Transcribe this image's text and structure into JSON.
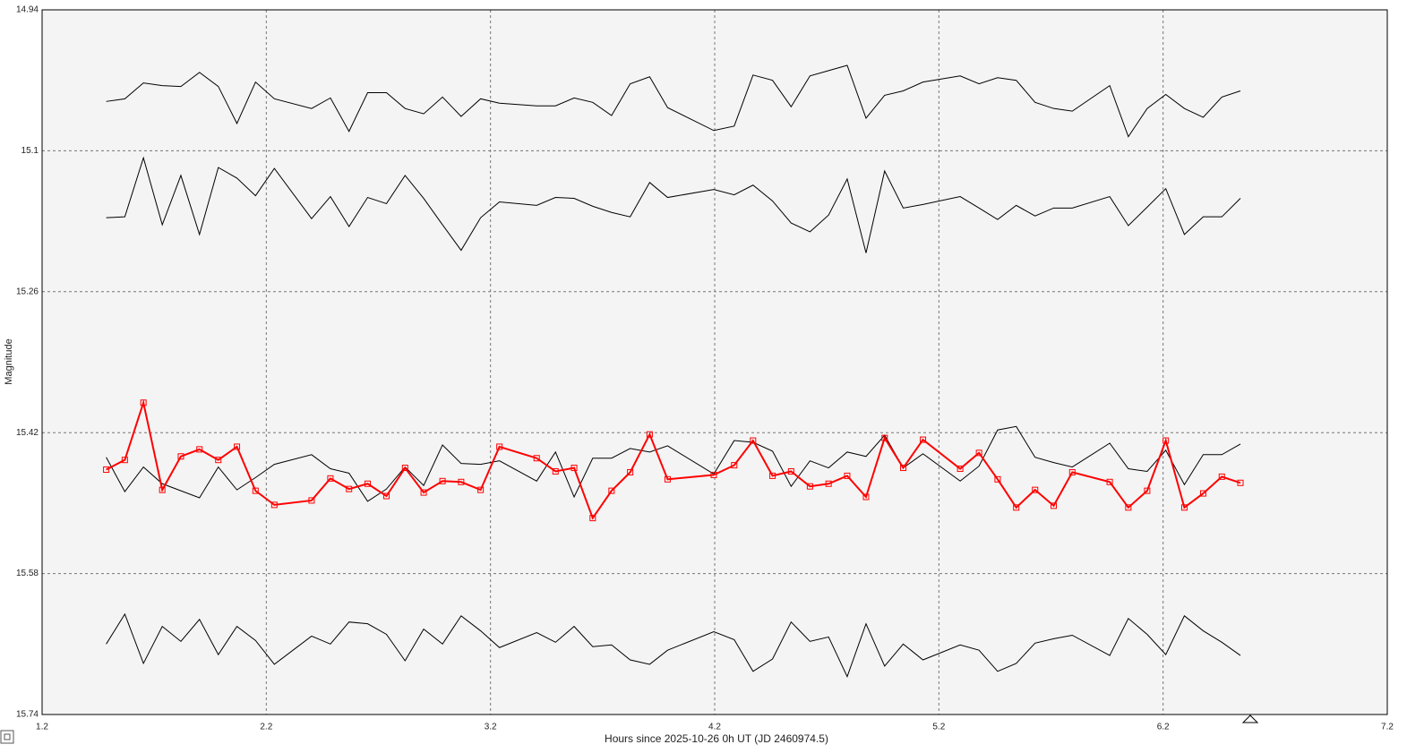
{
  "chart_data": {
    "type": "line",
    "x_label": "Hours since 2025-10-26 0h UT (JD 2460974.5)",
    "y_label": "Magnitude",
    "x": [
      1.486,
      1.569,
      1.652,
      1.736,
      1.819,
      1.902,
      1.986,
      2.069,
      2.152,
      2.236,
      2.402,
      2.486,
      2.569,
      2.652,
      2.736,
      2.819,
      2.902,
      2.986,
      3.069,
      3.156,
      3.24,
      3.406,
      3.49,
      3.573,
      3.656,
      3.74,
      3.823,
      3.91,
      3.99,
      4.196,
      4.287,
      4.371,
      4.458,
      4.541,
      4.625,
      4.708,
      4.791,
      4.875,
      4.958,
      5.041,
      5.129,
      5.295,
      5.379,
      5.462,
      5.545,
      5.629,
      5.712,
      5.795,
      5.962,
      6.045,
      6.129,
      6.212,
      6.295,
      6.379,
      6.462,
      6.545
    ],
    "series": [
      {
        "color": "#000000",
        "values": [
          15.044,
          15.041,
          15.023,
          15.026,
          15.027,
          15.011,
          15.027,
          15.069,
          15.022,
          15.041,
          15.052,
          15.04,
          15.078,
          15.034,
          15.034,
          15.052,
          15.058,
          15.039,
          15.061,
          15.041,
          15.046,
          15.049,
          15.049,
          15.04,
          15.045,
          15.06,
          15.024,
          15.016,
          15.051,
          15.077,
          15.072,
          15.014,
          15.02,
          15.05,
          15.015,
          15.009,
          15.003,
          15.063,
          15.037,
          15.032,
          15.022,
          15.015,
          15.024,
          15.017,
          15.02,
          15.045,
          15.052,
          15.055,
          15.026,
          15.084,
          15.052,
          15.036,
          15.052,
          15.062,
          15.039,
          15.032
        ]
      },
      {
        "color": "#000000",
        "values": [
          15.176,
          15.175,
          15.108,
          15.184,
          15.128,
          15.195,
          15.119,
          15.131,
          15.151,
          15.12,
          15.177,
          15.152,
          15.186,
          15.153,
          15.16,
          15.128,
          15.154,
          15.184,
          15.213,
          15.176,
          15.158,
          15.162,
          15.153,
          15.154,
          15.163,
          15.17,
          15.175,
          15.136,
          15.153,
          15.144,
          15.15,
          15.139,
          15.157,
          15.182,
          15.192,
          15.173,
          15.132,
          15.216,
          15.123,
          15.165,
          15.161,
          15.152,
          15.165,
          15.178,
          15.162,
          15.174,
          15.165,
          15.165,
          15.152,
          15.185,
          15.164,
          15.143,
          15.195,
          15.175,
          15.175,
          15.154
        ]
      },
      {
        "color": "#000000",
        "values": [
          15.448,
          15.487,
          15.459,
          15.478,
          15.486,
          15.494,
          15.459,
          15.485,
          15.471,
          15.456,
          15.445,
          15.461,
          15.466,
          15.498,
          15.484,
          15.459,
          15.48,
          15.434,
          15.455,
          15.456,
          15.452,
          15.475,
          15.442,
          15.493,
          15.449,
          15.449,
          15.438,
          15.442,
          15.435,
          15.467,
          15.429,
          15.431,
          15.441,
          15.481,
          15.452,
          15.46,
          15.442,
          15.447,
          15.423,
          15.46,
          15.444,
          15.475,
          15.458,
          15.417,
          15.413,
          15.448,
          15.454,
          15.459,
          15.432,
          15.461,
          15.464,
          15.44,
          15.479,
          15.445,
          15.445,
          15.433
        ]
      },
      {
        "color": "#ff0000",
        "marker": "square",
        "values": [
          15.462,
          15.451,
          15.386,
          15.485,
          15.447,
          15.439,
          15.451,
          15.436,
          15.486,
          15.502,
          15.497,
          15.472,
          15.484,
          15.478,
          15.492,
          15.46,
          15.488,
          15.475,
          15.476,
          15.485,
          15.436,
          15.449,
          15.464,
          15.46,
          15.517,
          15.486,
          15.465,
          15.422,
          15.473,
          15.468,
          15.457,
          15.429,
          15.469,
          15.464,
          15.481,
          15.478,
          15.469,
          15.493,
          15.426,
          15.46,
          15.428,
          15.461,
          15.443,
          15.473,
          15.505,
          15.485,
          15.503,
          15.465,
          15.476,
          15.505,
          15.486,
          15.429,
          15.505,
          15.489,
          15.47,
          15.477
        ]
      },
      {
        "color": "#000000",
        "values": [
          15.66,
          15.626,
          15.682,
          15.64,
          15.657,
          15.632,
          15.672,
          15.64,
          15.656,
          15.683,
          15.651,
          15.66,
          15.635,
          15.637,
          15.649,
          15.679,
          15.643,
          15.66,
          15.628,
          15.645,
          15.664,
          15.647,
          15.658,
          15.64,
          15.663,
          15.661,
          15.678,
          15.683,
          15.667,
          15.646,
          15.655,
          15.691,
          15.677,
          15.635,
          15.657,
          15.652,
          15.697,
          15.637,
          15.685,
          15.66,
          15.678,
          15.661,
          15.667,
          15.691,
          15.682,
          15.659,
          15.654,
          15.65,
          15.673,
          15.631,
          15.649,
          15.672,
          15.628,
          15.645,
          15.658,
          15.673
        ]
      }
    ],
    "xlim": [
      1.2,
      7.2
    ],
    "xticks": [
      1.2,
      2.2,
      3.2,
      4.2,
      5.2,
      6.2,
      7.2
    ],
    "ylim": [
      14.94,
      15.74
    ],
    "yticks": [
      14.94,
      15.1,
      15.26,
      15.42,
      15.58,
      15.74
    ],
    "y_inverted": true,
    "grid": true
  }
}
